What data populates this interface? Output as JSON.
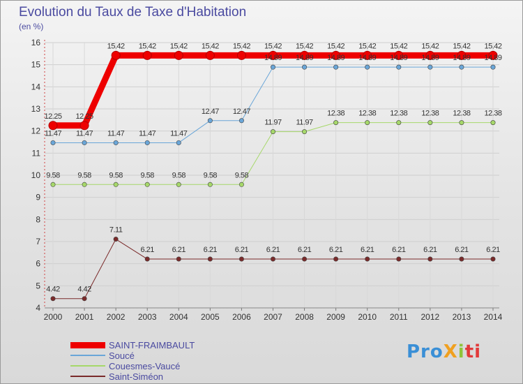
{
  "chart_data": {
    "type": "line",
    "title": "Evolution du Taux de Taxe d'Habitation",
    "subtitle": "(en %)",
    "x": [
      "2000",
      "2001",
      "2002",
      "2003",
      "2004",
      "2005",
      "2006",
      "2007",
      "2008",
      "2009",
      "2010",
      "2011",
      "2012",
      "2013",
      "2014"
    ],
    "ylim": [
      4,
      16
    ],
    "yticks": [
      4,
      5,
      6,
      7,
      8,
      9,
      10,
      11,
      12,
      13,
      14,
      15,
      16
    ],
    "grid": true,
    "legend_position": "bottom-left",
    "series": [
      {
        "name": "SAINT-FRAIMBAULT",
        "color": "#ee0000",
        "width": 9,
        "values": [
          12.25,
          12.25,
          15.42,
          15.42,
          15.42,
          15.42,
          15.42,
          15.42,
          15.42,
          15.42,
          15.42,
          15.42,
          15.42,
          15.42,
          15.42
        ],
        "labels": [
          "12.25",
          "12.25",
          "15.42",
          "15.42",
          "15.42",
          "15.42",
          "15.42",
          "15.42",
          "15.42",
          "15.42",
          "15.42",
          "15.42",
          "15.42",
          "15.42",
          "15.42"
        ]
      },
      {
        "name": "Soucé",
        "color": "#6aa6d8",
        "width": 1,
        "values": [
          11.47,
          11.47,
          11.47,
          11.47,
          11.47,
          12.47,
          12.47,
          14.89,
          14.89,
          14.89,
          14.89,
          14.89,
          14.89,
          14.89,
          14.89
        ],
        "labels": [
          "11.47",
          "11.47",
          "11.47",
          "11.47",
          "11.47",
          "12.47",
          "12.47",
          "14.89",
          "14.89",
          "14.89",
          "14.89",
          "14.89",
          "14.89",
          "14.89",
          "14.89"
        ]
      },
      {
        "name": "Couesmes-Vaucé",
        "color": "#a6d86a",
        "width": 1,
        "values": [
          9.58,
          9.58,
          9.58,
          9.58,
          9.58,
          9.58,
          9.58,
          11.97,
          11.97,
          12.38,
          12.38,
          12.38,
          12.38,
          12.38,
          12.38
        ],
        "labels": [
          "9.58",
          "9.58",
          "9.58",
          "9.58",
          "9.58",
          "9.58",
          "9.58",
          "11.97",
          "11.97",
          "12.38",
          "12.38",
          "12.38",
          "12.38",
          "12.38",
          "12.38"
        ]
      },
      {
        "name": "Saint-Siméon",
        "color": "#7a2a2a",
        "width": 1,
        "values": [
          4.42,
          4.42,
          7.11,
          6.21,
          6.21,
          6.21,
          6.21,
          6.21,
          6.21,
          6.21,
          6.21,
          6.21,
          6.21,
          6.21,
          6.21
        ],
        "labels": [
          "4.42",
          "4.42",
          "7.11",
          "6.21",
          "6.21",
          "6.21",
          "6.21",
          "6.21",
          "6.21",
          "6.21",
          "6.21",
          "6.21",
          "6.21",
          "6.21",
          "6.21"
        ]
      }
    ]
  },
  "logo": {
    "text": "ProXiti",
    "parts": [
      "Pro",
      "X",
      "i",
      "ti"
    ]
  }
}
